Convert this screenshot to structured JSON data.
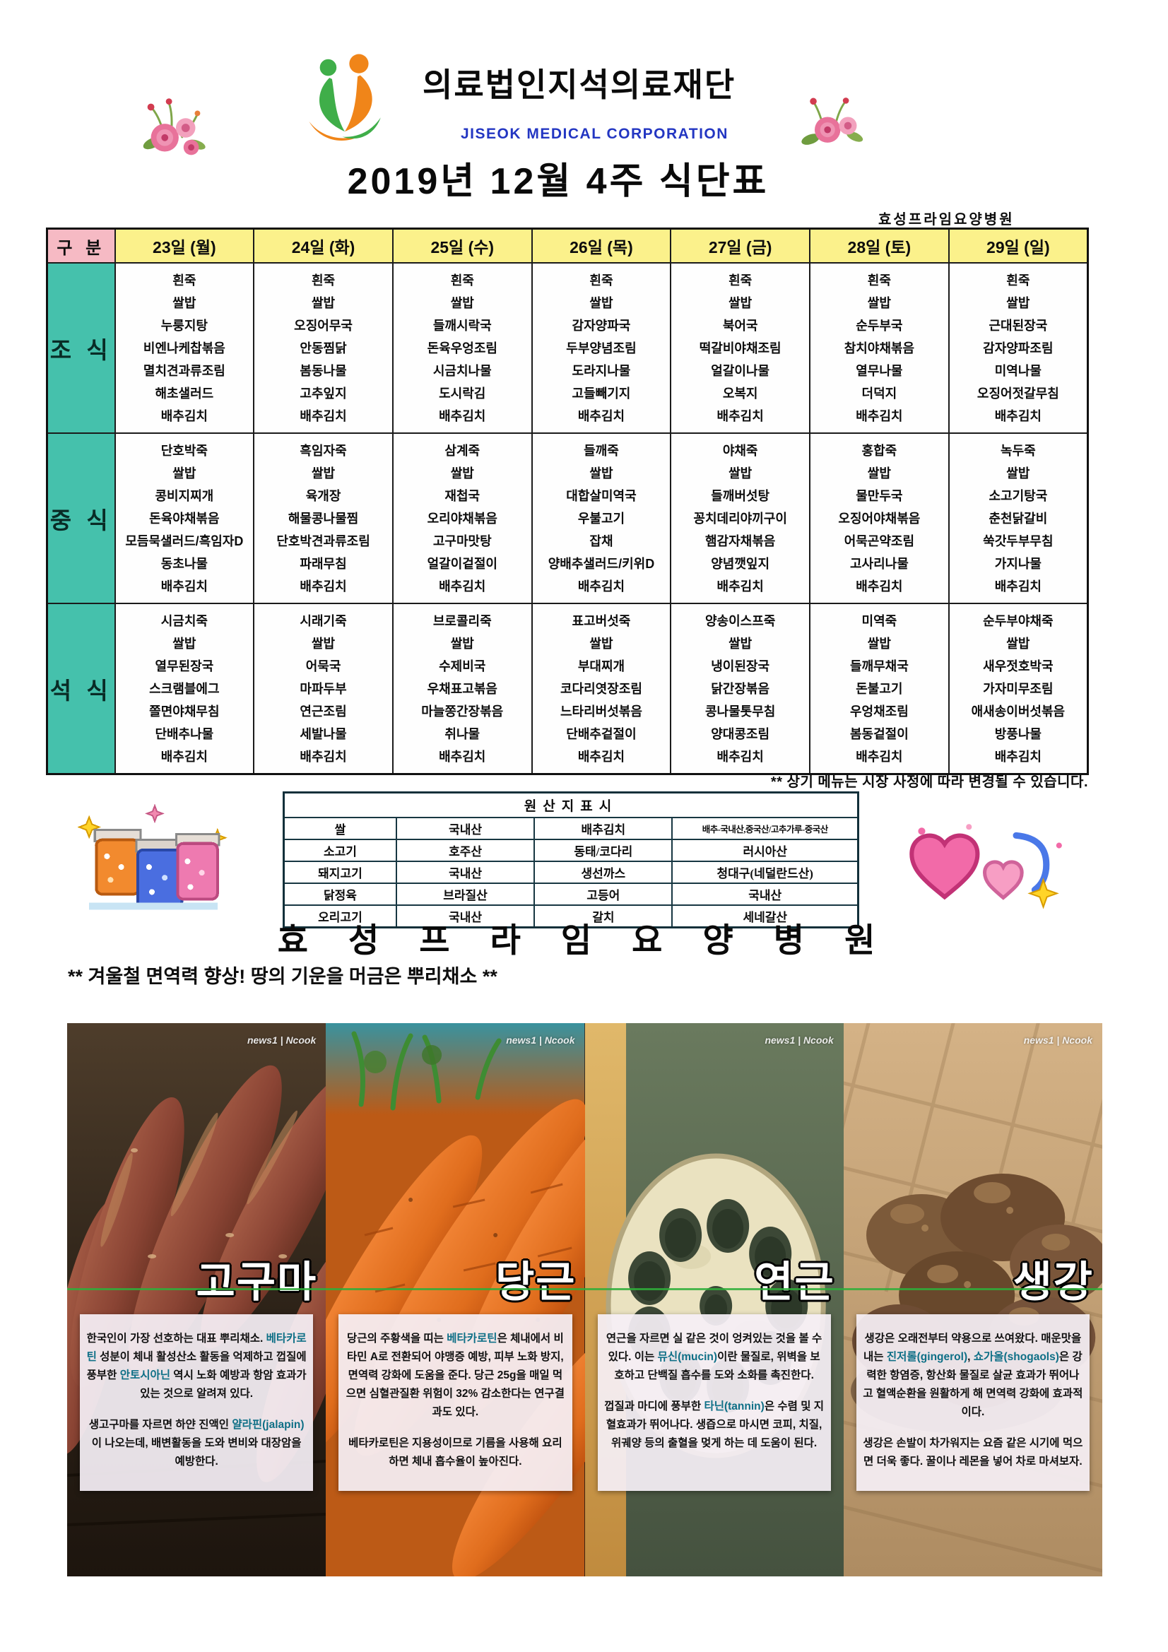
{
  "header": {
    "corp_name": "의료법인지석의료재단",
    "corp_name_en": "JISEOK MEDICAL CORPORATION",
    "title": "2019년 12월 4주 식단표",
    "hospital_name_small": "효성프라임요양병원"
  },
  "menu_table": {
    "col_header_label": "구 분",
    "day_headers": [
      "23일 (월)",
      "24일 (화)",
      "25일 (수)",
      "26일 (목)",
      "27일 (금)",
      "28일 (토)",
      "29일 (일)"
    ],
    "rows": [
      {
        "label": "조 식",
        "days": [
          [
            "흰죽",
            "쌀밥",
            "누룽지탕",
            "비엔나케찹볶음",
            "멸치견과류조림",
            "해초샐러드",
            "배추김치"
          ],
          [
            "흰죽",
            "쌀밥",
            "오징어무국",
            "안동찜닭",
            "봄동나물",
            "고추잎지",
            "배추김치"
          ],
          [
            "흰죽",
            "쌀밥",
            "들깨시락국",
            "돈육우엉조림",
            "시금치나물",
            "도시락김",
            "배추김치"
          ],
          [
            "흰죽",
            "쌀밥",
            "감자양파국",
            "두부양념조림",
            "도라지나물",
            "고들빼기지",
            "배추김치"
          ],
          [
            "흰죽",
            "쌀밥",
            "북어국",
            "떡갈비야채조림",
            "얼갈이나물",
            "오복지",
            "배추김치"
          ],
          [
            "흰죽",
            "쌀밥",
            "순두부국",
            "참치야채볶음",
            "열무나물",
            "더덕지",
            "배추김치"
          ],
          [
            "흰죽",
            "쌀밥",
            "근대된장국",
            "감자양파조림",
            "미역나물",
            "오징어젓갈무침",
            "배추김치"
          ]
        ]
      },
      {
        "label": "중 식",
        "days": [
          [
            "단호박죽",
            "쌀밥",
            "콩비지찌개",
            "돈육야채볶음",
            "모듬묵샐러드/흑임자D",
            "동초나물",
            "배추김치"
          ],
          [
            "흑임자죽",
            "쌀밥",
            "육개장",
            "해물콩나물찜",
            "단호박견과류조림",
            "파래무침",
            "배추김치"
          ],
          [
            "삼계죽",
            "쌀밥",
            "재첩국",
            "오리야채볶음",
            "고구마맛탕",
            "얼갈이겉절이",
            "배추김치"
          ],
          [
            "들깨죽",
            "쌀밥",
            "대합살미역국",
            "우불고기",
            "잡채",
            "양배추샐러드/키위D",
            "배추김치"
          ],
          [
            "야채죽",
            "쌀밥",
            "들깨버섯탕",
            "꽁치데리야끼구이",
            "햄감자채볶음",
            "양념깻잎지",
            "배추김치"
          ],
          [
            "홍합죽",
            "쌀밥",
            "물만두국",
            "오징어야채볶음",
            "어묵곤약조림",
            "고사리나물",
            "배추김치"
          ],
          [
            "녹두죽",
            "쌀밥",
            "소고기탕국",
            "춘천닭갈비",
            "쑥갓두부무침",
            "가지나물",
            "배추김치"
          ]
        ]
      },
      {
        "label": "석 식",
        "days": [
          [
            "시금치죽",
            "쌀밥",
            "열무된장국",
            "스크램블에그",
            "쫄면야채무침",
            "단배추나물",
            "배추김치"
          ],
          [
            "시래기죽",
            "쌀밥",
            "어묵국",
            "마파두부",
            "연근조림",
            "세발나물",
            "배추김치"
          ],
          [
            "브로콜리죽",
            "쌀밥",
            "수제비국",
            "우채표고볶음",
            "마늘쫑간장볶음",
            "취나물",
            "배추김치"
          ],
          [
            "표고버섯죽",
            "쌀밥",
            "부대찌개",
            "코다리엿장조림",
            "느타리버섯볶음",
            "단배추겉절이",
            "배추김치"
          ],
          [
            "양송이스프죽",
            "쌀밥",
            "냉이된장국",
            "닭간장볶음",
            "콩나물톳무침",
            "양대콩조림",
            "배추김치"
          ],
          [
            "미역죽",
            "쌀밥",
            "들깨무채국",
            "돈불고기",
            "우엉채조림",
            "봄동겉절이",
            "배추김치"
          ],
          [
            "순두부야채죽",
            "쌀밥",
            "새우젓호박국",
            "가자미무조림",
            "애새송이버섯볶음",
            "방풍나물",
            "배추김치"
          ]
        ]
      }
    ]
  },
  "footnote": "** 상기 메뉴는 시장 사정에 따라 변경될 수 있습니다.",
  "origin_table": {
    "title": "원산지표시",
    "rows": [
      [
        "쌀",
        "국내산",
        "배추김치",
        "배추-국내산,중국산/고추가루-중국산"
      ],
      [
        "소고기",
        "호주산",
        "동태/코다리",
        "러시아산"
      ],
      [
        "돼지고기",
        "국내산",
        "생선까스",
        "청대구(네덜란드산)"
      ],
      [
        "닭정육",
        "브라질산",
        "고등어",
        "국내산"
      ],
      [
        "오리고기",
        "국내산",
        "갈치",
        "세네갈산"
      ]
    ]
  },
  "hospital_title_large": "효 성 프 라 임 요 양 병 원",
  "section_heading": "** 겨울철 면역력 향상! 땅의 기운을 머금은 뿌리채소 **",
  "cards": [
    {
      "title": "고구마",
      "watermark": "news1 | Ncook",
      "paragraphs": [
        [
          {
            "t": "한국인이 가장 선호하는 대표 뿌리채소. "
          },
          {
            "t": "베타카로틴",
            "h": true
          },
          {
            "t": " 성분이 체내 활성산소 활동을 억제하고 껍질에 풍부한 "
          },
          {
            "t": "안토시아닌",
            "h": true
          },
          {
            "t": " 역시 노화 예방과 항암 효과가 있는 것으로 알려져 있다."
          }
        ],
        [
          {
            "t": "생고구마를 자르면 하얀 진액인 "
          },
          {
            "t": "얄라핀(jalapin)",
            "h": true
          },
          {
            "t": "이 나오는데, 배변활동을 도와 변비와 대장암을 예방한다."
          }
        ]
      ]
    },
    {
      "title": "당근",
      "watermark": "news1 | Ncook",
      "paragraphs": [
        [
          {
            "t": "당근의 주황색을 띠는 "
          },
          {
            "t": "베타카로틴",
            "h": true
          },
          {
            "t": "은 체내에서 비타민 A로 전환되어 야맹증 예방, 피부 노화 방지, 면역력 강화에 도움을 준다. 당근 25g을 매일 먹으면 심혈관질환 위험이 32% 감소한다는 연구결과도 있다."
          }
        ],
        [
          {
            "t": "베타카로틴은 지용성이므로 기름을 사용해 요리하면 체내 흡수율이 높아진다."
          }
        ]
      ]
    },
    {
      "title": "연근",
      "watermark": "news1 | Ncook",
      "paragraphs": [
        [
          {
            "t": "연근을 자르면 실 같은 것이 엉켜있는 것을 볼 수 있다. 이는 "
          },
          {
            "t": "뮤신(mucin)",
            "h": true
          },
          {
            "t": "이란 물질로, 위벽을 보호하고 단백질 흡수를 도와 소화를 촉진한다."
          }
        ],
        [
          {
            "t": "껍질과 마디에 풍부한 "
          },
          {
            "t": "타닌(tannin)",
            "h": true
          },
          {
            "t": "은 수렴 및 지혈효과가 뛰어나다. 생즙으로 마시면 코피, 치질, 위궤양 등의 출혈을 멎게 하는 데 도움이 된다."
          }
        ]
      ]
    },
    {
      "title": "생강",
      "watermark": "news1 | Ncook",
      "paragraphs": [
        [
          {
            "t": "생강은 오래전부터 약용으로 쓰여왔다. 매운맛을 내는 "
          },
          {
            "t": "진저롤(gingerol)",
            "h": true
          },
          {
            "t": ", "
          },
          {
            "t": "쇼가올(shogaols)",
            "h": true
          },
          {
            "t": "은 강력한 항염증, 항산화 물질로 살균 효과가 뛰어나고 혈액순환을 원활하게 해 면역력 강화에 효과적이다."
          }
        ],
        [
          {
            "t": "생강은 손발이 차가워지는 요즘 같은 시기에 먹으면 더욱 좋다. 꿀이나 레몬을 넣어 차로 마셔보자."
          }
        ]
      ]
    }
  ],
  "colors": {
    "day_header_yellow": "#fbf18b",
    "category_pink": "#f6bac4",
    "meal_label_teal": "#45c1ac",
    "corp_blue": "#2336c2",
    "highlight_teal": "#0e6f86",
    "scan_line_green": "#2fae3a"
  }
}
